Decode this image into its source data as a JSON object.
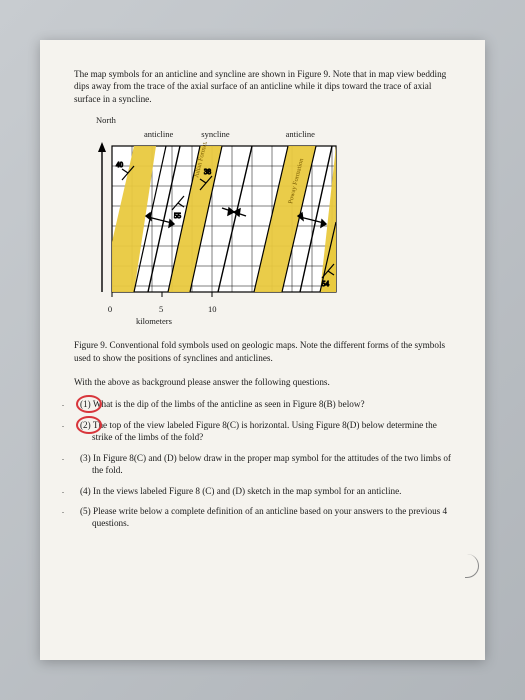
{
  "intro": "The map symbols for an anticline and syncline are shown in Figure 9. Note that in map view bedding dips away from the trace of the axial surface of an anticline while it dips toward the trace of axial surface in a syncline.",
  "figure": {
    "north_label": "North",
    "top_labels": [
      "anticline",
      "syncline",
      "anticline"
    ],
    "formation_labels": [
      "Julian Formation",
      "Poway Formation"
    ],
    "dip_values": [
      "40",
      "55",
      "38",
      "54"
    ],
    "scale_ticks": [
      "0",
      "5",
      "10"
    ],
    "scale_unit": "kilometers",
    "colors": {
      "formation_fill": "#e9c93f",
      "background": "#ffffff",
      "grid": "#000000",
      "strike_arrow": "#000000"
    },
    "width_km": 24,
    "height_km": 14
  },
  "caption": "Figure 9. Conventional fold symbols used on geologic maps. Note the different forms of the symbols used to show the positions of synclines and anticlines.",
  "lead": "With the above as background please answer the following questions.",
  "questions": [
    "(1) What is the dip of the limbs of the anticline as seen in Figure 8(B) below?",
    "(2) The top of the view labeled Figure 8(C) is horizontal. Using Figure 8(D) below determine the strike of the limbs of the fold?",
    "(3) In Figure 8(C) and (D) below draw in the proper map symbol for the attitudes of the two limbs of the fold.",
    "(4) In the views labeled Figure 8 (C) and (D) sketch in the map symbol for an anticline.",
    "(5) Please write below a complete definition of an anticline based on your answers to the previous 4 questions."
  ],
  "circled_questions": [
    0,
    1
  ]
}
